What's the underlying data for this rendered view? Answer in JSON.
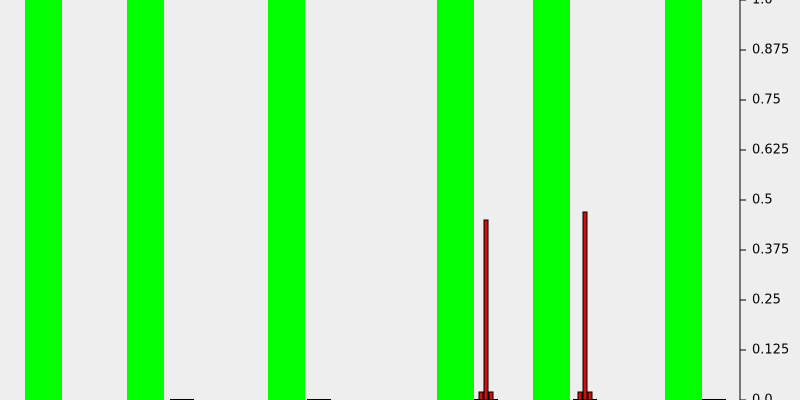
{
  "chart_data": {
    "type": "bar",
    "title": "",
    "xlabel": "",
    "ylabel": "",
    "ylim": [
      0,
      1.0
    ],
    "yaxis_position": "right",
    "grid": false,
    "legend": "none",
    "y_ticks": [
      {
        "value": 0,
        "label": "0.0"
      },
      {
        "value": 0.125,
        "label": "0.125"
      },
      {
        "value": 0.25,
        "label": "0.25"
      },
      {
        "value": 0.375,
        "label": "0.375"
      },
      {
        "value": 0.5,
        "label": "0.5"
      },
      {
        "value": 0.625,
        "label": "0.625"
      },
      {
        "value": 0.75,
        "label": "0.75"
      },
      {
        "value": 0.875,
        "label": "0.875"
      },
      {
        "value": 1.0,
        "label": "1.0"
      }
    ],
    "series": [
      {
        "kind": "background-band",
        "color": "#00ff00",
        "values": [
          1.0,
          1.0,
          1.0,
          1.0,
          1.0,
          1.0
        ]
      },
      {
        "kind": "histogram",
        "color": "#cc1111",
        "edge_color": "#000000",
        "groups": [
          {
            "values": [
              0.0,
              0.0,
              0.0
            ]
          },
          {
            "values": [
              0.0,
              0.0,
              0.0
            ]
          },
          {
            "values": [
              0.02,
              0.45,
              0.02
            ]
          },
          {
            "values": [
              0.02,
              0.47,
              0.02
            ]
          },
          {
            "values": [
              0.0,
              0.0,
              0.0
            ]
          }
        ]
      }
    ]
  }
}
